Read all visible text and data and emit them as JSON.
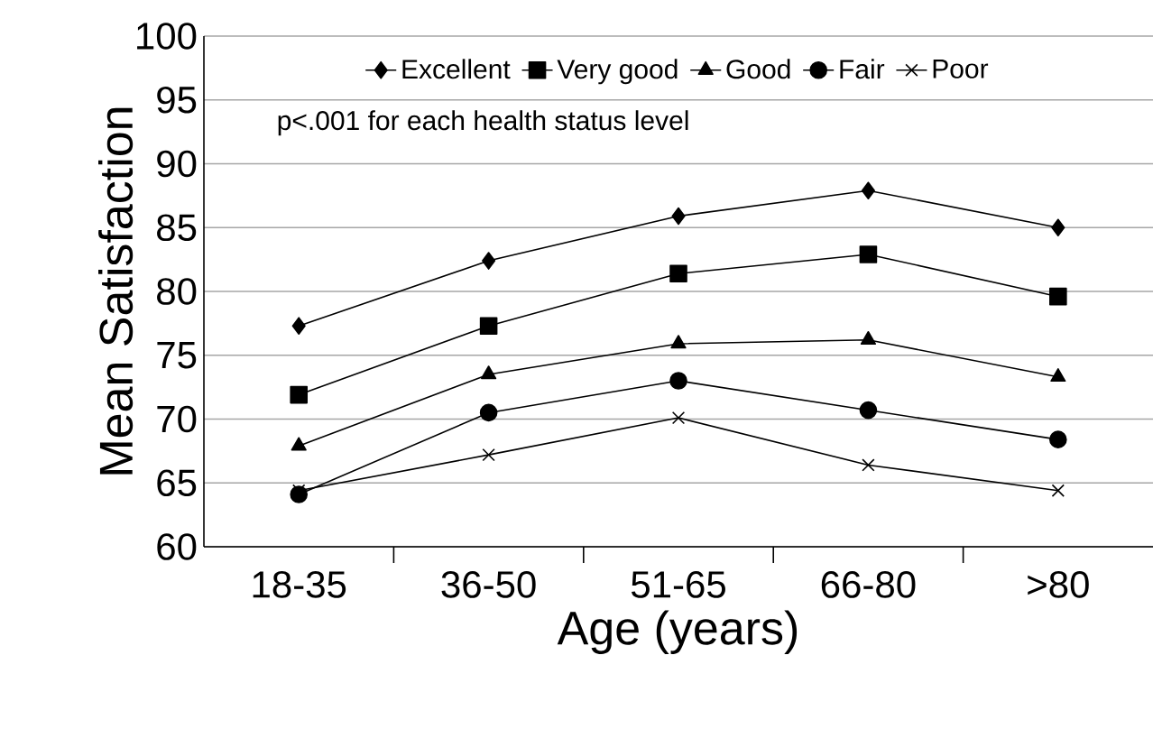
{
  "chart_data": {
    "type": "line",
    "xlabel": "Age (years)",
    "ylabel": "Mean Satisfaction",
    "categories": [
      "18-35",
      "36-50",
      "51-65",
      "66-80",
      ">80"
    ],
    "series": [
      {
        "name": "Excellent",
        "color": "#000000",
        "marker": "diamond",
        "values": [
          77.3,
          82.4,
          85.9,
          87.9,
          85.0
        ]
      },
      {
        "name": "Very good",
        "color": "#000000",
        "marker": "square",
        "values": [
          71.9,
          77.3,
          81.4,
          82.9,
          79.6
        ]
      },
      {
        "name": "Good",
        "color": "#000000",
        "marker": "triangle",
        "values": [
          67.9,
          73.5,
          75.9,
          76.2,
          73.3
        ]
      },
      {
        "name": "Fair",
        "color": "#000000",
        "marker": "circle",
        "values": [
          64.1,
          70.5,
          73.0,
          70.7,
          68.4
        ]
      },
      {
        "name": "Poor",
        "color": "#000000",
        "marker": "cross",
        "values": [
          64.4,
          67.2,
          70.1,
          66.4,
          64.4
        ]
      }
    ],
    "ylim": [
      60,
      100
    ],
    "yticks": [
      60,
      65,
      70,
      75,
      80,
      85,
      90,
      95,
      100
    ],
    "grid": "y",
    "legend": "top",
    "annotations": [
      "p<.001 for each health status level"
    ]
  }
}
